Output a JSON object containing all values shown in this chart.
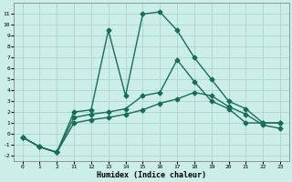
{
  "xlabel": "Humidex (Indice chaleur)",
  "bg_color": "#cceee8",
  "grid_color": "#aad4cc",
  "line_color": "#1a6b5a",
  "xlim": [
    -0.5,
    15.5
  ],
  "ylim": [
    -2.5,
    12
  ],
  "xtick_positions": [
    0,
    1,
    2,
    3,
    4,
    5,
    6,
    7,
    8,
    9,
    10,
    11,
    12,
    13,
    14,
    15
  ],
  "xtick_labels": [
    "0",
    "1",
    "2",
    "11",
    "12",
    "13",
    "14",
    "15",
    "16",
    "17",
    "18",
    "19",
    "20",
    "21",
    "22",
    "23"
  ],
  "yticks": [
    -2,
    -1,
    0,
    1,
    2,
    3,
    4,
    5,
    6,
    7,
    8,
    9,
    10,
    11
  ],
  "series1_y": [
    -0.3,
    -1.2,
    -1.7,
    2.0,
    2.2,
    9.5,
    3.5,
    11.0,
    11.2,
    9.5,
    7.0,
    5.0,
    3.0,
    2.3,
    1.0,
    1.0
  ],
  "series2_y": [
    -0.3,
    -1.2,
    -1.7,
    1.5,
    1.8,
    2.0,
    2.3,
    3.5,
    3.8,
    6.8,
    4.8,
    3.0,
    2.3,
    1.0,
    1.0,
    1.0
  ],
  "series3_y": [
    -0.3,
    -1.2,
    -1.7,
    1.0,
    1.3,
    1.5,
    1.8,
    2.2,
    2.8,
    3.2,
    3.8,
    3.5,
    2.5,
    1.8,
    0.8,
    0.5
  ],
  "marker_size": 2.5,
  "line_width": 1.0
}
